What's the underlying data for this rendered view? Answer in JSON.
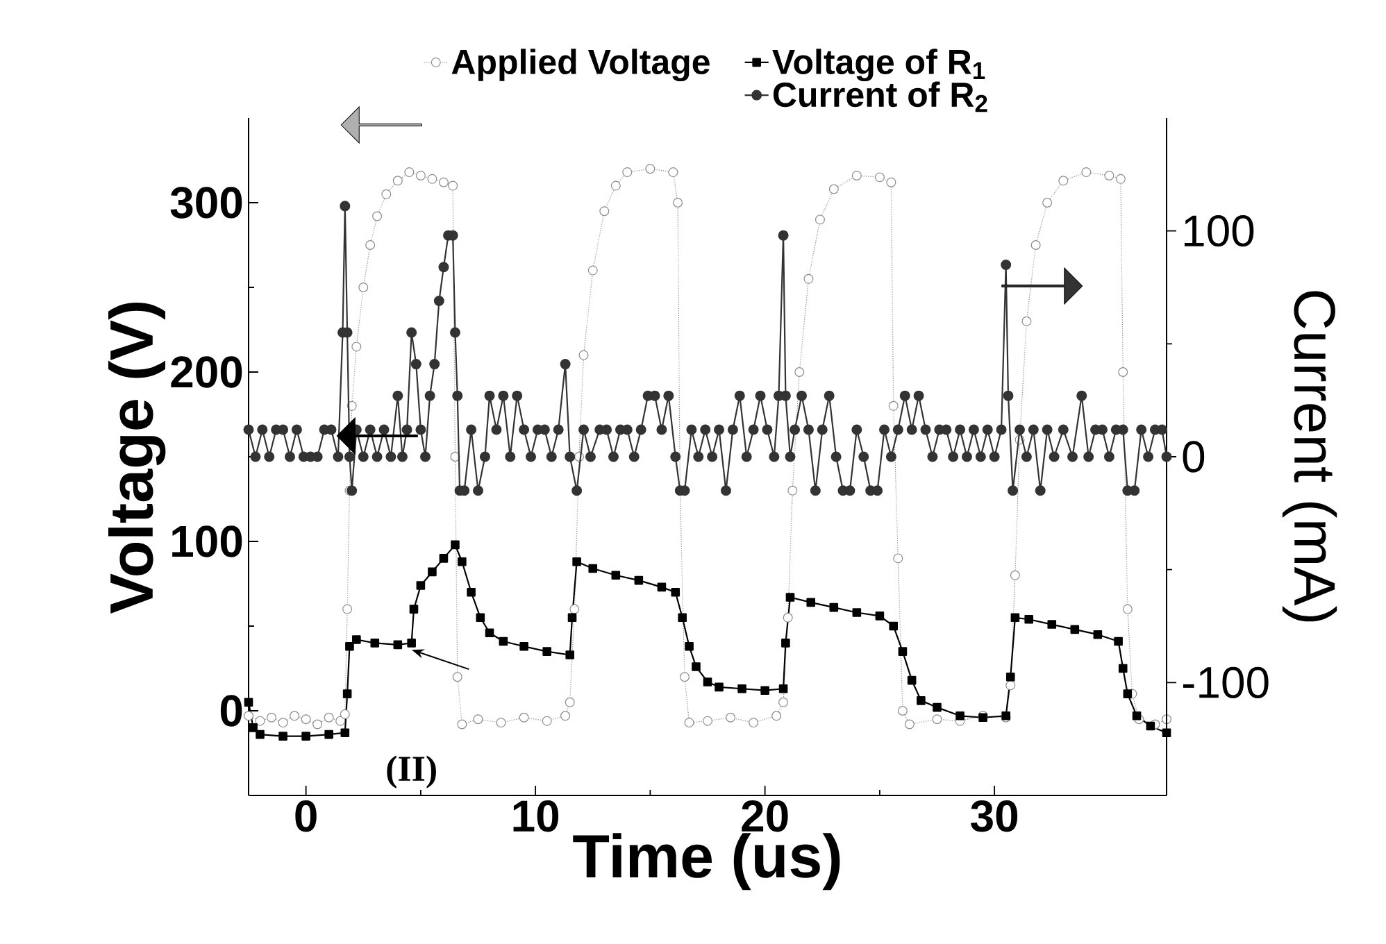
{
  "chart_data": {
    "type": "line",
    "xlabel": "Time (us)",
    "ylabel": "Voltage (V)",
    "y2label": "Current (mA)",
    "xlim": [
      -2.5,
      37.5
    ],
    "xticks": [
      0,
      10,
      20,
      30
    ],
    "ylim": [
      -50,
      350
    ],
    "yticks": [
      0,
      100,
      200,
      300
    ],
    "y2lim": [
      -150,
      150
    ],
    "y2ticks": [
      -100,
      0,
      100
    ],
    "legend": "top",
    "annotations": [
      {
        "text": "(II)",
        "x": 4.6,
        "y": 36
      }
    ],
    "series": [
      {
        "name": "Applied Voltage",
        "color": "#8c8c8c",
        "marker": "circle",
        "line_style": "dotted",
        "x": [
          -2.5,
          -2.0,
          -1.5,
          -1.0,
          -0.5,
          0,
          0.5,
          1.0,
          1.5,
          1.7,
          1.8,
          1.9,
          2.0,
          2.2,
          2.5,
          2.8,
          3.1,
          3.5,
          4.0,
          4.5,
          5.0,
          5.5,
          6.0,
          6.4,
          6.5,
          6.6,
          6.8,
          7.5,
          8.5,
          9.5,
          10.5,
          11.3,
          11.5,
          11.7,
          11.9,
          12.1,
          12.5,
          13.0,
          13.5,
          14.0,
          15.0,
          16.0,
          16.2,
          16.3,
          16.5,
          16.7,
          17.5,
          18.5,
          19.5,
          20.5,
          20.8,
          21.0,
          21.2,
          21.5,
          21.9,
          22.4,
          23.0,
          24.0,
          25.0,
          25.5,
          25.6,
          25.8,
          26.0,
          26.3,
          27.5,
          28.5,
          29.5,
          30.5,
          30.7,
          30.9,
          31.1,
          31.4,
          31.8,
          32.3,
          33.0,
          34.0,
          35.0,
          35.5,
          35.6,
          35.8,
          36.0,
          36.3,
          37.0,
          37.5
        ],
        "values": [
          -3,
          -6,
          -4,
          -7,
          -3,
          -5,
          -8,
          -4,
          -6,
          -2,
          60,
          130,
          180,
          215,
          250,
          275,
          292,
          305,
          313,
          318,
          316,
          314,
          312,
          310,
          150,
          20,
          -8,
          -5,
          -7,
          -4,
          -6,
          -3,
          5,
          60,
          150,
          210,
          260,
          295,
          310,
          318,
          320,
          318,
          300,
          130,
          20,
          -7,
          -6,
          -4,
          -7,
          -3,
          5,
          55,
          130,
          200,
          255,
          290,
          308,
          316,
          315,
          312,
          180,
          90,
          0,
          -8,
          -5,
          -6,
          -3,
          -4,
          15,
          80,
          160,
          230,
          275,
          300,
          313,
          318,
          316,
          314,
          200,
          60,
          10,
          -5,
          -8,
          -5
        ]
      },
      {
        "name": "Voltage of R$_{1}$",
        "color": "#000000",
        "marker": "square",
        "line_style": "solid",
        "x": [
          -2.5,
          -2.3,
          -2.0,
          -1.0,
          0,
          1.0,
          1.7,
          1.8,
          1.9,
          2.2,
          3.0,
          4.0,
          4.6,
          4.7,
          5.0,
          5.5,
          6.0,
          6.5,
          6.8,
          7.2,
          7.6,
          8.0,
          8.6,
          9.5,
          10.5,
          11.5,
          11.6,
          11.8,
          12.5,
          13.5,
          14.5,
          15.5,
          16.1,
          16.4,
          16.7,
          17.0,
          17.5,
          18.0,
          19.0,
          20.0,
          20.8,
          20.9,
          21.1,
          22.0,
          23.0,
          24.0,
          25.0,
          25.6,
          26.0,
          26.4,
          26.8,
          27.5,
          28.5,
          29.5,
          30.5,
          30.7,
          30.9,
          31.5,
          32.5,
          33.5,
          34.5,
          35.4,
          35.6,
          35.8,
          36.2,
          36.8,
          37.5
        ],
        "values": [
          5,
          -10,
          -14,
          -15,
          -15,
          -14,
          -13,
          10,
          38,
          42,
          40,
          39,
          40,
          60,
          74,
          82,
          90,
          98,
          88,
          70,
          55,
          46,
          41,
          38,
          35,
          33,
          55,
          88,
          84,
          80,
          77,
          73,
          70,
          55,
          38,
          26,
          17,
          14,
          13,
          12,
          13,
          40,
          67,
          64,
          61,
          58,
          56,
          50,
          35,
          18,
          6,
          2,
          -3,
          -4,
          -3,
          20,
          55,
          54,
          51,
          48,
          45,
          41,
          25,
          10,
          -3,
          -9,
          -13
        ]
      },
      {
        "name": "Current of R$_{2}$",
        "color": "#333333",
        "marker": "circle",
        "line_style": "solid",
        "axis": "y2",
        "x": [
          -2.5,
          -2.2,
          -1.9,
          -1.6,
          -1.3,
          -1.0,
          -0.7,
          -0.4,
          -0.1,
          0.2,
          0.5,
          0.8,
          1.1,
          1.4,
          1.6,
          1.7,
          1.8,
          1.9,
          2.0,
          2.2,
          2.5,
          2.8,
          3.1,
          3.4,
          3.7,
          4.0,
          4.2,
          4.4,
          4.6,
          4.8,
          5.0,
          5.2,
          5.4,
          5.6,
          5.8,
          6.0,
          6.2,
          6.4,
          6.5,
          6.6,
          6.7,
          6.9,
          7.2,
          7.5,
          7.8,
          8.0,
          8.3,
          8.6,
          8.9,
          9.2,
          9.5,
          9.8,
          10.1,
          10.4,
          10.7,
          11.0,
          11.3,
          11.5,
          11.8,
          12.1,
          12.4,
          12.8,
          13.1,
          13.4,
          13.7,
          14.0,
          14.3,
          14.6,
          14.9,
          15.2,
          15.5,
          15.8,
          16.1,
          16.3,
          16.5,
          16.8,
          17.1,
          17.4,
          17.7,
          18.0,
          18.3,
          18.6,
          18.9,
          19.2,
          19.5,
          19.8,
          20.1,
          20.4,
          20.6,
          20.8,
          20.9,
          21.1,
          21.3,
          21.6,
          21.9,
          22.2,
          22.5,
          22.8,
          23.1,
          23.4,
          23.7,
          24.0,
          24.3,
          24.6,
          24.9,
          25.2,
          25.5,
          25.8,
          26.1,
          26.4,
          26.7,
          27.0,
          27.3,
          27.6,
          27.9,
          28.2,
          28.5,
          28.8,
          29.1,
          29.4,
          29.7,
          30.0,
          30.3,
          30.5,
          30.6,
          30.8,
          31.1,
          31.4,
          31.7,
          32.0,
          32.3,
          32.6,
          33.0,
          33.4,
          33.8,
          34.1,
          34.4,
          34.7,
          35.0,
          35.3,
          35.6,
          35.8,
          36.1,
          36.4,
          36.7,
          37.0,
          37.3,
          37.5
        ],
        "values": [
          12,
          0,
          12,
          0,
          12,
          12,
          0,
          12,
          0,
          0,
          0,
          12,
          12,
          0,
          55,
          111,
          55,
          0,
          -15,
          12,
          0,
          12,
          0,
          12,
          0,
          27,
          0,
          12,
          55,
          41,
          12,
          0,
          27,
          41,
          69,
          84,
          98,
          98,
          55,
          27,
          -15,
          -15,
          12,
          -15,
          0,
          27,
          12,
          27,
          0,
          27,
          12,
          0,
          12,
          12,
          0,
          12,
          41,
          0,
          -15,
          12,
          0,
          12,
          12,
          0,
          12,
          12,
          0,
          12,
          27,
          27,
          12,
          27,
          0,
          -15,
          -15,
          12,
          0,
          12,
          0,
          12,
          -15,
          12,
          27,
          0,
          12,
          27,
          12,
          0,
          27,
          98,
          27,
          0,
          12,
          27,
          12,
          -15,
          12,
          27,
          0,
          -15,
          -15,
          12,
          0,
          -15,
          -15,
          12,
          0,
          12,
          27,
          12,
          27,
          12,
          0,
          12,
          12,
          0,
          12,
          0,
          12,
          0,
          12,
          0,
          12,
          85,
          27,
          -15,
          12,
          0,
          12,
          -15,
          12,
          0,
          12,
          0,
          27,
          0,
          12,
          12,
          0,
          12,
          12,
          -15,
          -15,
          12,
          0,
          12,
          12,
          0
        ]
      }
    ]
  }
}
